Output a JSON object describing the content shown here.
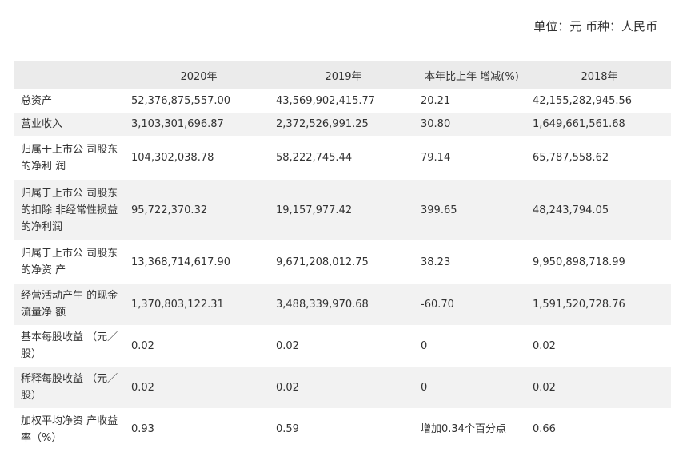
{
  "unit_text": "单位：元 币种：人民币",
  "table": {
    "headers": [
      "",
      "2020年",
      "2019年",
      "本年比上年 增减(%)",
      "2018年"
    ],
    "rows": [
      {
        "label": "总资产",
        "v2020": "52,376,875,557.00",
        "v2019": "43,569,902,415.77",
        "change": "20.21",
        "v2018": "42,155,282,945.56"
      },
      {
        "label": "营业收入",
        "v2020": "3,103,301,696.87",
        "v2019": "2,372,526,991.25",
        "change": "30.80",
        "v2018": "1,649,661,561.68"
      },
      {
        "label": "归属于上市公 司股东的净利 润",
        "v2020": "104,302,038.78",
        "v2019": "58,222,745.44",
        "change": "79.14",
        "v2018": "65,787,558.62"
      },
      {
        "label": "归属于上市公 司股东的扣除 非经常性损益 的净利润",
        "v2020": "95,722,370.32",
        "v2019": "19,157,977.42",
        "change": "399.65",
        "v2018": "48,243,794.05"
      },
      {
        "label": "归属于上市公 司股东的净资 产",
        "v2020": "13,368,714,617.90",
        "v2019": "9,671,208,012.75",
        "change": "38.23",
        "v2018": "9,950,898,718.99"
      },
      {
        "label": "经营活动产生 的现金流量净 额",
        "v2020": "1,370,803,122.31",
        "v2019": "3,488,339,970.68",
        "change": "-60.70",
        "v2018": "1,591,520,728.76"
      },
      {
        "label": "基本每股收益 （元／股）",
        "v2020": "0.02",
        "v2019": "0.02",
        "change": "0",
        "v2018": "0.02"
      },
      {
        "label": "稀释每股收益 （元／股）",
        "v2020": "0.02",
        "v2019": "0.02",
        "change": "0",
        "v2018": "0.02"
      },
      {
        "label": "加权平均净资 产收益率（%）",
        "v2020": "0.93",
        "v2019": "0.59",
        "change": "增加0.34个百分点",
        "v2018": "0.66"
      }
    ]
  }
}
